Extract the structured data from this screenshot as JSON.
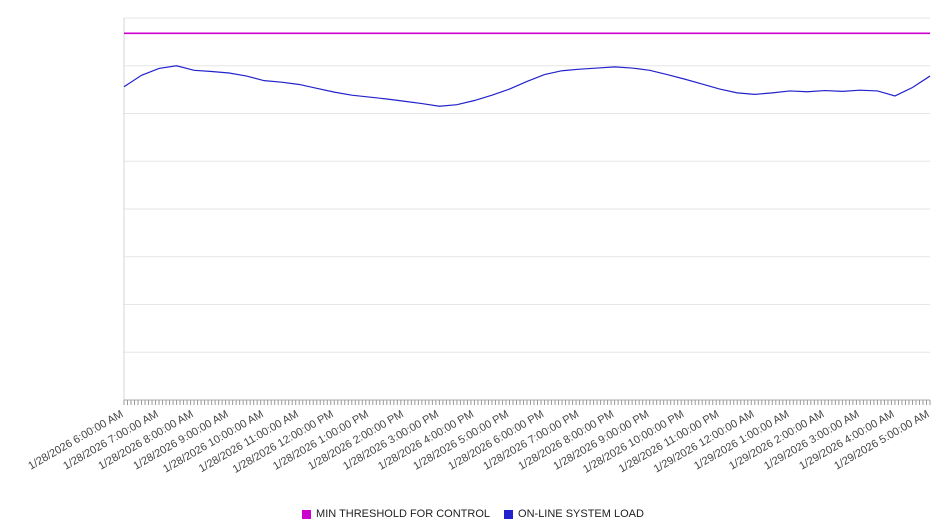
{
  "chart_data": {
    "type": "line",
    "title": "",
    "xlabel": "",
    "ylabel": "",
    "ylim": [
      0,
      100
    ],
    "grid": true,
    "legend_position": "bottom",
    "x_start": "1/28/2026 6:00:00 AM",
    "x_end": "1/29/2026 5:00:00 AM",
    "x_point_interval_minutes": 30,
    "x_tick_labels": [
      "1/28/2026 6:00:00 AM",
      "1/28/2026 7:00:00 AM",
      "1/28/2026 8:00:00 AM",
      "1/28/2026 9:00:00 AM",
      "1/28/2026 10:00:00 AM",
      "1/28/2026 11:00:00 AM",
      "1/28/2026 12:00:00 PM",
      "1/28/2026 1:00:00 PM",
      "1/28/2026 2:00:00 PM",
      "1/28/2026 3:00:00 PM",
      "1/28/2026 4:00:00 PM",
      "1/28/2026 5:00:00 PM",
      "1/28/2026 6:00:00 PM",
      "1/28/2026 7:00:00 PM",
      "1/28/2026 8:00:00 PM",
      "1/28/2026 9:00:00 PM",
      "1/28/2026 10:00:00 PM",
      "1/28/2026 11:00:00 PM",
      "1/29/2026 12:00:00 AM",
      "1/29/2026 1:00:00 AM",
      "1/29/2026 2:00:00 AM",
      "1/29/2026 3:00:00 AM",
      "1/29/2026 4:00:00 AM",
      "1/29/2026 5:00:00 AM"
    ],
    "series": [
      {
        "name": "MIN THRESHOLD FOR CONTROL",
        "color": "#cc00cc",
        "style": "constant",
        "value": 96
      },
      {
        "name": "ON-LINE SYSTEM LOAD",
        "color": "#2222cc",
        "style": "line",
        "values": [
          82.0,
          85.0,
          86.8,
          87.5,
          86.3,
          86.0,
          85.6,
          84.8,
          83.6,
          83.2,
          82.6,
          81.6,
          80.6,
          79.8,
          79.3,
          78.8,
          78.2,
          77.6,
          76.9,
          77.3,
          78.4,
          79.8,
          81.4,
          83.4,
          85.2,
          86.2,
          86.6,
          86.9,
          87.2,
          86.9,
          86.3,
          85.2,
          84.0,
          82.7,
          81.4,
          80.4,
          80.0,
          80.4,
          80.9,
          80.7,
          81.0,
          80.8,
          81.1,
          80.9,
          79.6,
          81.8,
          84.8
        ]
      }
    ]
  }
}
